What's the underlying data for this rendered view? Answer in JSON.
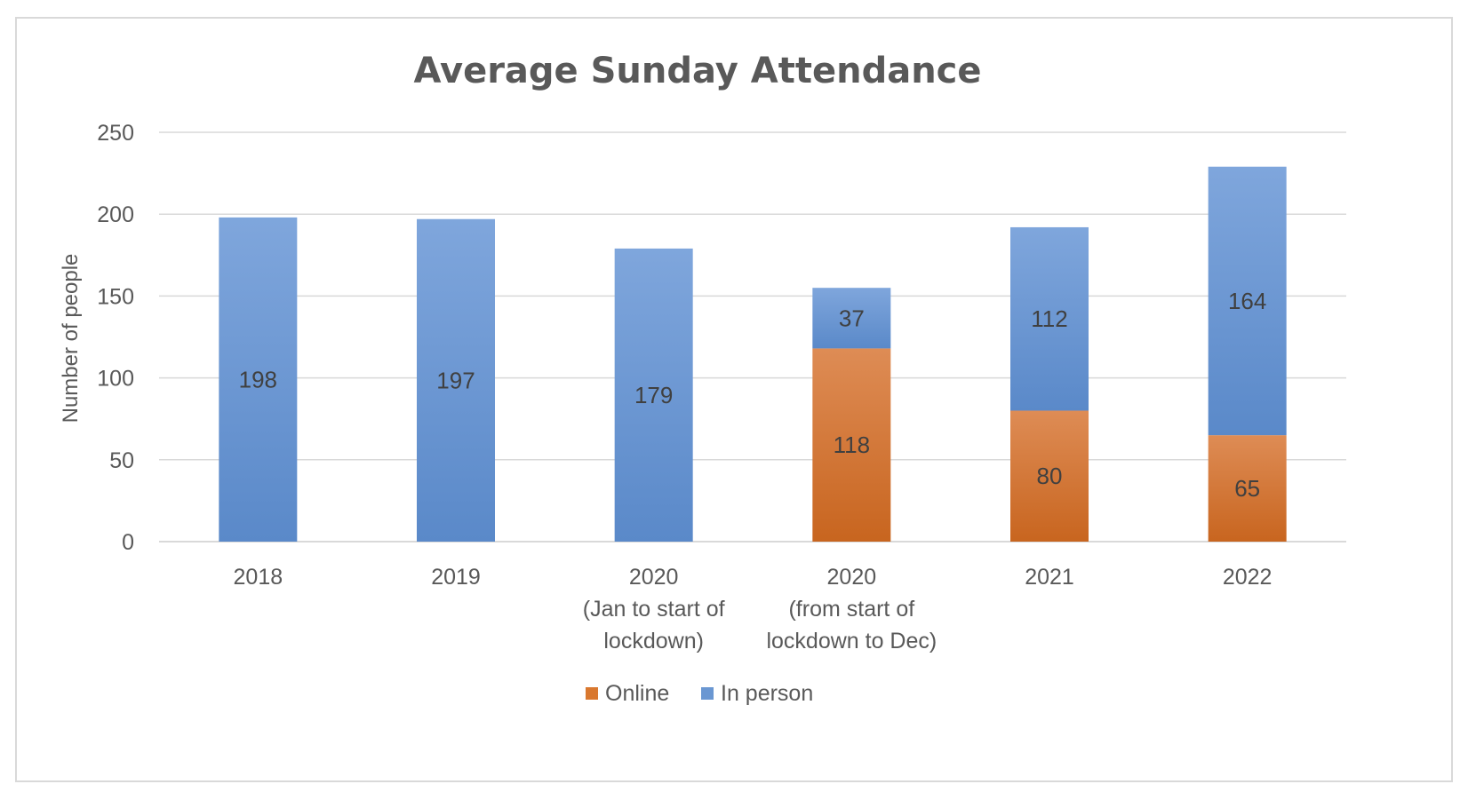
{
  "chart_data": {
    "type": "bar",
    "stacked": true,
    "title": "Average Sunday Attendance",
    "xlabel": "",
    "ylabel": "Number of people",
    "ylim": [
      0,
      250
    ],
    "yticks": [
      0,
      50,
      100,
      150,
      200,
      250
    ],
    "grid": true,
    "legend_position": "bottom",
    "categories": [
      [
        "2018"
      ],
      [
        "2019"
      ],
      [
        "2020",
        "(Jan to start of",
        "lockdown)"
      ],
      [
        "2020",
        "(from start of",
        "lockdown to Dec)"
      ],
      [
        "2021"
      ],
      [
        "2022"
      ]
    ],
    "series": [
      {
        "name": "Online",
        "color": "#d9782f",
        "values": [
          0,
          0,
          0,
          118,
          80,
          65
        ]
      },
      {
        "name": "In person",
        "color": "#6a97d2",
        "values": [
          198,
          197,
          179,
          37,
          112,
          164
        ]
      }
    ],
    "data_labels": [
      [
        null,
        null,
        null,
        "118",
        "80",
        "65"
      ],
      [
        "198",
        "197",
        "179",
        "37",
        "112",
        "164"
      ]
    ]
  }
}
